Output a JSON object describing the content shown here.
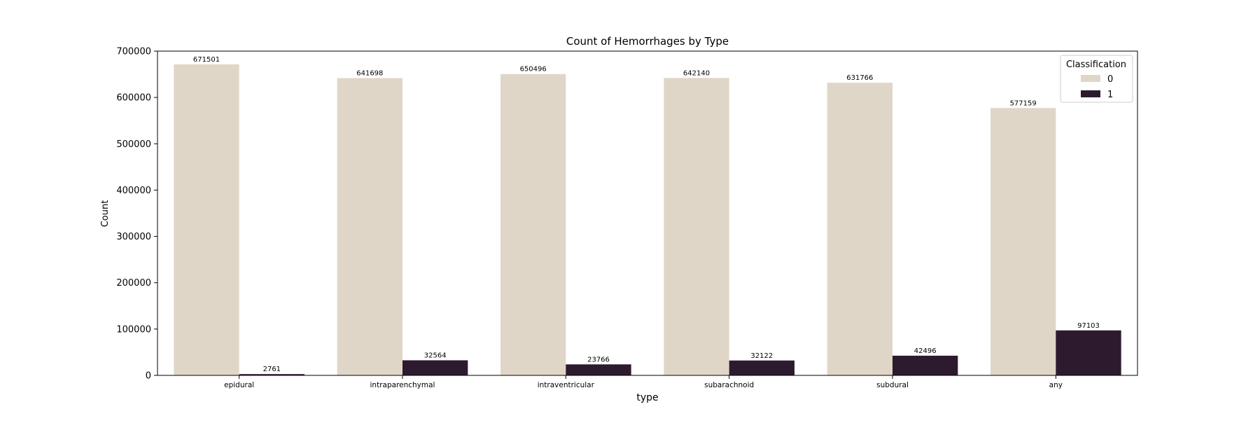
{
  "chart_data": {
    "type": "bar",
    "title": "Count of Hemorrhages by Type",
    "xlabel": "type",
    "ylabel": "Count",
    "categories": [
      "epidural",
      "intraparenchymal",
      "intraventricular",
      "subarachnoid",
      "subdural",
      "any"
    ],
    "series": [
      {
        "name": "0",
        "color": "#e0d6c8",
        "values": [
          671501,
          641698,
          650496,
          642140,
          631766,
          577159
        ]
      },
      {
        "name": "1",
        "color": "#2e1a2e",
        "values": [
          2761,
          32564,
          23766,
          32122,
          42496,
          97103
        ]
      }
    ],
    "ylim": [
      0,
      700000
    ],
    "yticks": [
      0,
      100000,
      200000,
      300000,
      400000,
      500000,
      600000,
      700000
    ],
    "legend": {
      "title": "Classification",
      "position": "top-right"
    },
    "grid": false
  }
}
